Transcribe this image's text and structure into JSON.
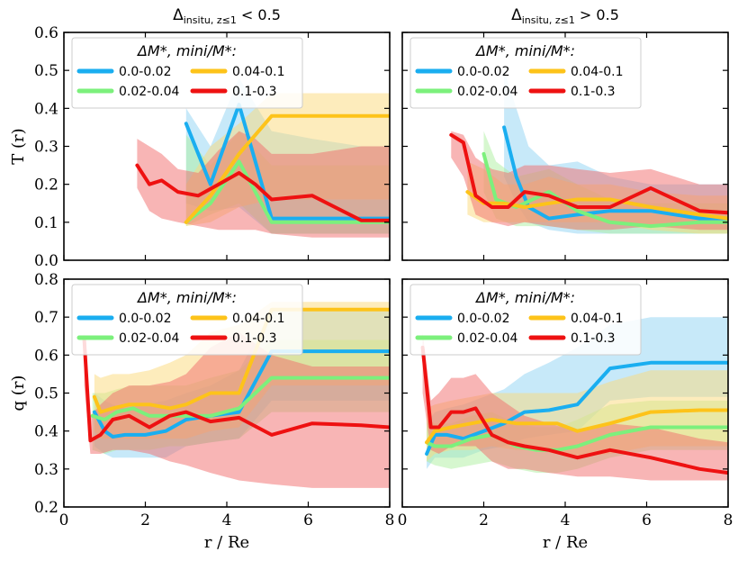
{
  "colors": {
    "blue": "#1aaef0",
    "green": "#7cf07c",
    "orange": "#fdc31a",
    "red": "#ee1111",
    "blue_band": "#8fd3f4",
    "green_band": "#aef0a0",
    "orange_band": "#fcd97a",
    "red_band": "#f26b6b"
  },
  "chart_data": [
    {
      "id": "top-left",
      "type": "line",
      "title": "Δ_insitu, z≤1 < 0.5",
      "xlabel": "",
      "ylabel": "T (r)",
      "xlim": [
        0,
        8
      ],
      "ylim": [
        0,
        0.6
      ],
      "xticks": [
        "0",
        "2",
        "4",
        "6",
        "8"
      ],
      "yticks": [
        "0.0",
        "0.1",
        "0.2",
        "0.3",
        "0.4",
        "0.5",
        "0.6"
      ],
      "show_xticklabels": false,
      "legend": {
        "title": "ΔM*, mini/M*:",
        "entries": [
          "0.0-0.02",
          "0.04-0.1",
          "0.02-0.04",
          "0.1-0.3"
        ]
      },
      "series": [
        {
          "name": "0.0-0.02",
          "color": "blue",
          "x": [
            3.0,
            3.6,
            4.3,
            5.1,
            6.1,
            7.3,
            8.0
          ],
          "y": [
            0.36,
            0.2,
            0.41,
            0.11,
            0.11,
            0.11,
            0.11
          ],
          "lo": [
            0.15,
            0.13,
            0.14,
            0.07,
            0.07,
            0.07,
            0.07
          ],
          "hi": [
            0.4,
            0.3,
            0.48,
            0.34,
            0.32,
            0.3,
            0.3
          ]
        },
        {
          "name": "0.02-0.04",
          "color": "green",
          "x": [
            3.0,
            3.6,
            4.3,
            5.1,
            6.1,
            7.3,
            8.0
          ],
          "y": [
            0.1,
            0.15,
            0.26,
            0.1,
            0.1,
            0.1,
            0.1
          ],
          "lo": [
            0.09,
            0.12,
            0.15,
            0.07,
            0.07,
            0.07,
            0.07
          ],
          "hi": [
            0.33,
            0.25,
            0.34,
            0.25,
            0.25,
            0.25,
            0.25
          ]
        },
        {
          "name": "0.04-0.1",
          "color": "orange",
          "x": [
            3.0,
            3.6,
            4.3,
            5.1,
            6.1,
            7.3,
            8.0
          ],
          "y": [
            0.1,
            0.17,
            0.28,
            0.38,
            0.38,
            0.38,
            0.38
          ],
          "lo": [
            0.09,
            0.1,
            0.14,
            0.16,
            0.16,
            0.16,
            0.16
          ],
          "hi": [
            0.2,
            0.3,
            0.36,
            0.44,
            0.44,
            0.44,
            0.44
          ]
        },
        {
          "name": "0.1-0.3",
          "color": "red",
          "x": [
            1.8,
            2.1,
            2.4,
            2.8,
            3.3,
            3.8,
            4.3,
            4.7,
            5.1,
            6.1,
            7.3,
            8.0
          ],
          "y": [
            0.25,
            0.2,
            0.21,
            0.18,
            0.17,
            0.2,
            0.23,
            0.2,
            0.16,
            0.17,
            0.105,
            0.105
          ],
          "lo": [
            0.19,
            0.13,
            0.11,
            0.1,
            0.09,
            0.08,
            0.08,
            0.08,
            0.07,
            0.06,
            0.06,
            0.06
          ],
          "hi": [
            0.32,
            0.3,
            0.28,
            0.24,
            0.23,
            0.29,
            0.34,
            0.32,
            0.28,
            0.28,
            0.3,
            0.3
          ]
        }
      ]
    },
    {
      "id": "top-right",
      "type": "line",
      "title": "Δ_insitu, z≤1 > 0.5",
      "xlabel": "",
      "ylabel": "",
      "xlim": [
        0,
        8
      ],
      "ylim": [
        0,
        0.6
      ],
      "xticks": [
        "0",
        "2",
        "4",
        "6",
        "8"
      ],
      "yticks": [
        "0.0",
        "0.1",
        "0.2",
        "0.3",
        "0.4",
        "0.5",
        "0.6"
      ],
      "show_xticklabels": false,
      "show_yticklabels": false,
      "legend": {
        "title": "ΔM*, mini/M*:",
        "entries": [
          "0.0-0.02",
          "0.04-0.1",
          "0.02-0.04",
          "0.1-0.3"
        ]
      },
      "series": [
        {
          "name": "0.0-0.02",
          "color": "blue",
          "x": [
            2.5,
            2.8,
            3.1,
            3.6,
            4.3,
            5.1,
            6.1,
            7.3,
            8.0
          ],
          "y": [
            0.35,
            0.22,
            0.14,
            0.11,
            0.12,
            0.13,
            0.13,
            0.11,
            0.11
          ],
          "lo": [
            0.22,
            0.15,
            0.1,
            0.08,
            0.07,
            0.07,
            0.07,
            0.07,
            0.07
          ],
          "hi": [
            0.5,
            0.4,
            0.3,
            0.25,
            0.26,
            0.22,
            0.2,
            0.2,
            0.2
          ]
        },
        {
          "name": "0.02-0.04",
          "color": "green",
          "x": [
            2.0,
            2.3,
            2.8,
            3.6,
            4.3,
            5.1,
            6.1,
            7.3,
            8.0
          ],
          "y": [
            0.28,
            0.16,
            0.14,
            0.18,
            0.13,
            0.1,
            0.09,
            0.1,
            0.1
          ],
          "lo": [
            0.18,
            0.11,
            0.09,
            0.09,
            0.08,
            0.07,
            0.07,
            0.07,
            0.07
          ],
          "hi": [
            0.34,
            0.26,
            0.22,
            0.24,
            0.2,
            0.16,
            0.15,
            0.15,
            0.15
          ]
        },
        {
          "name": "0.04-0.1",
          "color": "orange",
          "x": [
            1.6,
            2.0,
            2.5,
            3.0,
            3.6,
            4.3,
            5.1,
            6.1,
            7.3,
            8.0
          ],
          "y": [
            0.18,
            0.15,
            0.15,
            0.14,
            0.15,
            0.16,
            0.16,
            0.14,
            0.12,
            0.11
          ],
          "lo": [
            0.12,
            0.1,
            0.1,
            0.1,
            0.1,
            0.1,
            0.1,
            0.08,
            0.07,
            0.07
          ],
          "hi": [
            0.26,
            0.24,
            0.2,
            0.2,
            0.22,
            0.2,
            0.2,
            0.18,
            0.17,
            0.17
          ]
        },
        {
          "name": "0.1-0.3",
          "color": "red",
          "x": [
            1.2,
            1.5,
            1.8,
            2.2,
            2.6,
            3.0,
            3.6,
            4.3,
            5.1,
            6.1,
            7.3,
            8.0
          ],
          "y": [
            0.33,
            0.31,
            0.17,
            0.14,
            0.14,
            0.18,
            0.17,
            0.14,
            0.14,
            0.19,
            0.13,
            0.125
          ],
          "lo": [
            0.27,
            0.22,
            0.12,
            0.1,
            0.09,
            0.1,
            0.09,
            0.08,
            0.08,
            0.09,
            0.08,
            0.08
          ],
          "hi": [
            0.34,
            0.33,
            0.27,
            0.24,
            0.23,
            0.25,
            0.25,
            0.24,
            0.23,
            0.24,
            0.2,
            0.2
          ]
        }
      ]
    },
    {
      "id": "bottom-left",
      "type": "line",
      "title": "",
      "xlabel": "r / Re",
      "ylabel": "q (r)",
      "xlim": [
        0,
        8
      ],
      "ylim": [
        0.2,
        0.8
      ],
      "xticks": [
        "0",
        "2",
        "4",
        "6",
        "8"
      ],
      "yticks": [
        "0.2",
        "0.3",
        "0.4",
        "0.5",
        "0.6",
        "0.7",
        "0.8"
      ],
      "show_xticklabels": true,
      "legend": {
        "title": "ΔM*, mini/M*:",
        "entries": [
          "0.0-0.02",
          "0.04-0.1",
          "0.02-0.04",
          "0.1-0.3"
        ]
      },
      "series": [
        {
          "name": "0.0-0.02",
          "color": "blue",
          "x": [
            0.75,
            1.0,
            1.2,
            1.5,
            2.0,
            2.5,
            3.0,
            3.6,
            4.3,
            5.1,
            6.1,
            7.3,
            8.0
          ],
          "y": [
            0.45,
            0.4,
            0.385,
            0.39,
            0.39,
            0.4,
            0.43,
            0.44,
            0.45,
            0.61,
            0.61,
            0.61,
            0.61
          ],
          "lo": [
            0.36,
            0.34,
            0.33,
            0.33,
            0.33,
            0.33,
            0.36,
            0.37,
            0.38,
            0.48,
            0.48,
            0.48,
            0.48
          ],
          "hi": [
            0.5,
            0.48,
            0.47,
            0.46,
            0.47,
            0.48,
            0.5,
            0.52,
            0.56,
            0.72,
            0.72,
            0.72,
            0.72
          ]
        },
        {
          "name": "0.02-0.04",
          "color": "green",
          "x": [
            0.7,
            1.0,
            1.3,
            1.7,
            2.1,
            2.6,
            3.0,
            3.6,
            4.3,
            5.1,
            6.1,
            7.3,
            8.0
          ],
          "y": [
            0.44,
            0.43,
            0.45,
            0.46,
            0.44,
            0.44,
            0.44,
            0.44,
            0.46,
            0.54,
            0.54,
            0.54,
            0.54
          ],
          "lo": [
            0.35,
            0.34,
            0.35,
            0.35,
            0.35,
            0.36,
            0.36,
            0.37,
            0.38,
            0.45,
            0.45,
            0.45,
            0.45
          ],
          "hi": [
            0.5,
            0.5,
            0.51,
            0.52,
            0.52,
            0.52,
            0.52,
            0.54,
            0.56,
            0.64,
            0.64,
            0.64,
            0.64
          ]
        },
        {
          "name": "0.04-0.1",
          "color": "orange",
          "x": [
            0.75,
            0.9,
            1.2,
            1.6,
            2.1,
            2.6,
            3.0,
            3.6,
            4.3,
            5.1,
            6.1,
            7.3,
            8.0
          ],
          "y": [
            0.49,
            0.45,
            0.46,
            0.47,
            0.47,
            0.46,
            0.47,
            0.5,
            0.5,
            0.72,
            0.72,
            0.72,
            0.72
          ],
          "lo": [
            0.4,
            0.38,
            0.38,
            0.38,
            0.38,
            0.38,
            0.38,
            0.4,
            0.41,
            0.52,
            0.52,
            0.52,
            0.52
          ],
          "hi": [
            0.55,
            0.54,
            0.55,
            0.55,
            0.56,
            0.58,
            0.6,
            0.66,
            0.68,
            0.74,
            0.74,
            0.74,
            0.74
          ]
        },
        {
          "name": "0.1-0.3",
          "color": "red",
          "x": [
            0.5,
            0.65,
            0.9,
            1.2,
            1.6,
            2.1,
            2.6,
            3.0,
            3.6,
            4.3,
            5.1,
            6.1,
            7.3,
            8.0
          ],
          "y": [
            0.64,
            0.375,
            0.39,
            0.43,
            0.44,
            0.41,
            0.44,
            0.45,
            0.425,
            0.435,
            0.39,
            0.42,
            0.415,
            0.41
          ],
          "lo": [
            0.52,
            0.34,
            0.34,
            0.35,
            0.35,
            0.34,
            0.32,
            0.31,
            0.29,
            0.27,
            0.26,
            0.25,
            0.25,
            0.25
          ],
          "hi": [
            0.66,
            0.44,
            0.47,
            0.5,
            0.52,
            0.52,
            0.53,
            0.55,
            0.62,
            0.66,
            0.6,
            0.57,
            0.57,
            0.57
          ]
        }
      ]
    },
    {
      "id": "bottom-right",
      "type": "line",
      "title": "",
      "xlabel": "r / Re",
      "ylabel": "",
      "xlim": [
        0,
        8
      ],
      "ylim": [
        0.2,
        0.8
      ],
      "xticks": [
        "0",
        "2",
        "4",
        "6",
        "8"
      ],
      "yticks": [
        "0.2",
        "0.3",
        "0.4",
        "0.5",
        "0.6",
        "0.7",
        "0.8"
      ],
      "show_xticklabels": true,
      "show_yticklabels": false,
      "legend": {
        "title": "ΔM*, mini/M*:",
        "entries": [
          "0.0-0.02",
          "0.04-0.1",
          "0.02-0.04",
          "0.1-0.3"
        ]
      },
      "series": [
        {
          "name": "0.0-0.02",
          "color": "blue",
          "x": [
            0.6,
            0.8,
            1.1,
            1.5,
            2.0,
            2.5,
            3.0,
            3.6,
            4.3,
            5.1,
            6.1,
            7.3,
            8.0
          ],
          "y": [
            0.34,
            0.39,
            0.39,
            0.38,
            0.4,
            0.42,
            0.45,
            0.455,
            0.47,
            0.565,
            0.58,
            0.58,
            0.58
          ],
          "lo": [
            0.3,
            0.33,
            0.33,
            0.33,
            0.35,
            0.36,
            0.38,
            0.39,
            0.4,
            0.48,
            0.49,
            0.49,
            0.49
          ],
          "hi": [
            0.42,
            0.45,
            0.46,
            0.47,
            0.49,
            0.51,
            0.55,
            0.58,
            0.62,
            0.68,
            0.7,
            0.7,
            0.7
          ]
        },
        {
          "name": "0.02-0.04",
          "color": "green",
          "x": [
            0.6,
            0.8,
            1.2,
            1.7,
            2.2,
            2.8,
            3.3,
            3.8,
            4.3,
            5.1,
            6.1,
            7.3,
            8.0
          ],
          "y": [
            0.37,
            0.36,
            0.36,
            0.38,
            0.39,
            0.36,
            0.35,
            0.35,
            0.36,
            0.39,
            0.41,
            0.41,
            0.41
          ],
          "lo": [
            0.32,
            0.31,
            0.3,
            0.31,
            0.32,
            0.3,
            0.29,
            0.29,
            0.3,
            0.33,
            0.35,
            0.35,
            0.35
          ],
          "hi": [
            0.43,
            0.42,
            0.42,
            0.44,
            0.45,
            0.42,
            0.41,
            0.41,
            0.43,
            0.47,
            0.48,
            0.48,
            0.48
          ]
        },
        {
          "name": "0.04-0.1",
          "color": "orange",
          "x": [
            0.6,
            0.8,
            1.2,
            1.7,
            2.2,
            2.8,
            3.3,
            3.8,
            4.3,
            5.1,
            6.1,
            7.3,
            8.0
          ],
          "y": [
            0.37,
            0.4,
            0.41,
            0.42,
            0.43,
            0.42,
            0.42,
            0.42,
            0.4,
            0.42,
            0.45,
            0.455,
            0.455
          ],
          "lo": [
            0.32,
            0.34,
            0.35,
            0.35,
            0.36,
            0.35,
            0.35,
            0.34,
            0.33,
            0.34,
            0.36,
            0.36,
            0.36
          ],
          "hi": [
            0.46,
            0.47,
            0.48,
            0.49,
            0.5,
            0.5,
            0.5,
            0.5,
            0.5,
            0.53,
            0.56,
            0.56,
            0.56
          ]
        },
        {
          "name": "0.1-0.3",
          "color": "red",
          "x": [
            0.5,
            0.7,
            0.9,
            1.2,
            1.5,
            1.8,
            2.2,
            2.6,
            3.0,
            3.6,
            4.3,
            5.1,
            6.1,
            7.3,
            8.0
          ],
          "y": [
            0.62,
            0.41,
            0.41,
            0.45,
            0.45,
            0.46,
            0.39,
            0.37,
            0.36,
            0.35,
            0.33,
            0.35,
            0.33,
            0.3,
            0.29
          ],
          "lo": [
            0.5,
            0.35,
            0.34,
            0.36,
            0.36,
            0.36,
            0.32,
            0.3,
            0.3,
            0.29,
            0.28,
            0.28,
            0.27,
            0.27,
            0.27
          ],
          "hi": [
            0.66,
            0.48,
            0.5,
            0.54,
            0.54,
            0.55,
            0.5,
            0.47,
            0.44,
            0.42,
            0.4,
            0.42,
            0.41,
            0.38,
            0.37
          ]
        }
      ]
    }
  ]
}
